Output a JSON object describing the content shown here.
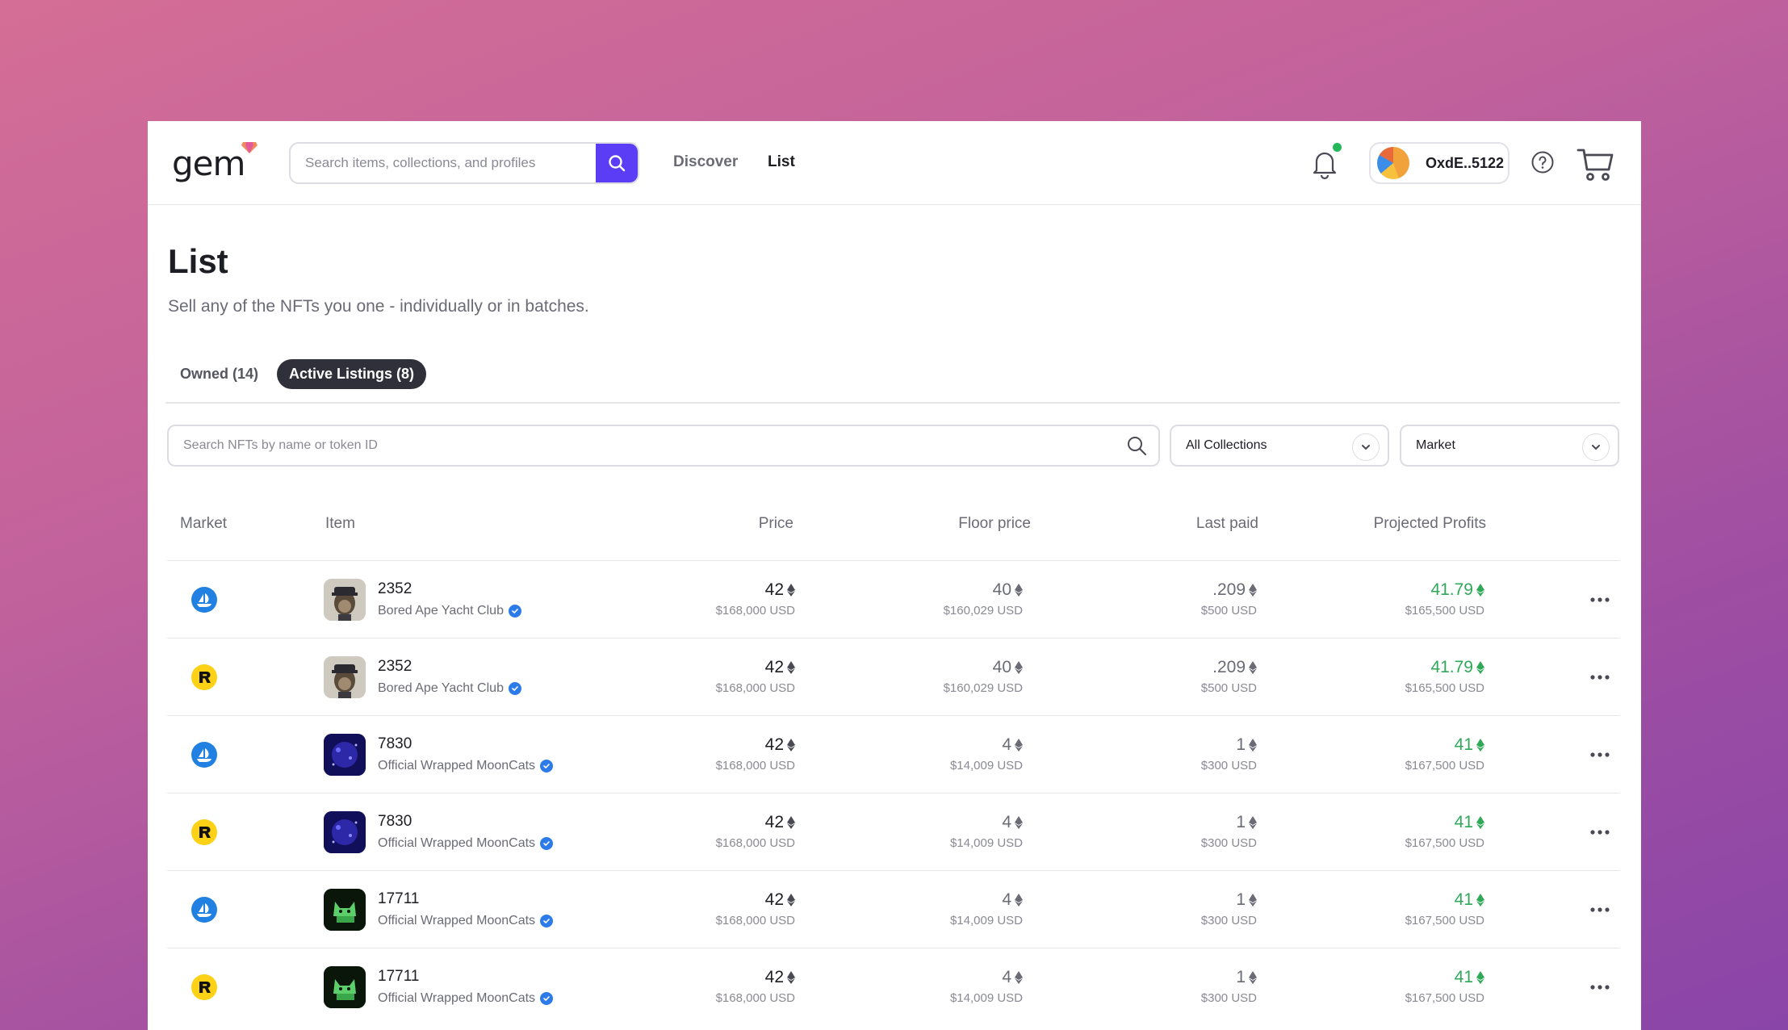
{
  "header": {
    "logo": "gem",
    "search_placeholder": "Search items, collections, and profiles",
    "nav": [
      {
        "label": "Discover"
      },
      {
        "label": "List"
      }
    ],
    "account": "OxdE..5122"
  },
  "page": {
    "title": "List",
    "subtitle": "Sell any of the NFTs you one - individually or in batches.",
    "tabs": [
      {
        "label": "Owned (14)"
      },
      {
        "label": "Active Listings (8)"
      }
    ],
    "filter_placeholder": "Search NFTs by name or token ID",
    "collection_select": "All Collections",
    "market_select": "Market"
  },
  "table": {
    "headers": {
      "market": "Market",
      "item": "Item",
      "price": "Price",
      "floor": "Floor price",
      "last": "Last paid",
      "profit": "Projected Profits"
    },
    "rows": [
      {
        "market_icon": "opensea-icon",
        "thumb": "ape",
        "name": "2352",
        "collection": "Bored Ape Yacht Club",
        "price": "42",
        "price_usd": "$168,000 USD",
        "floor": "40",
        "floor_usd": "$160,029 USD",
        "last": ".209",
        "last_usd": "$500 USD",
        "profit": "41.79",
        "profit_usd": "$165,500 USD"
      },
      {
        "market_icon": "rarible-icon",
        "thumb": "ape",
        "name": "2352",
        "collection": "Bored Ape Yacht Club",
        "price": "42",
        "price_usd": "$168,000 USD",
        "floor": "40",
        "floor_usd": "$160,029 USD",
        "last": ".209",
        "last_usd": "$500 USD",
        "profit": "41.79",
        "profit_usd": "$165,500 USD"
      },
      {
        "market_icon": "opensea-icon",
        "thumb": "moon",
        "name": "7830",
        "collection": "Official Wrapped MoonCats",
        "price": "42",
        "price_usd": "$168,000 USD",
        "floor": "4",
        "floor_usd": "$14,009 USD",
        "last": "1",
        "last_usd": "$300 USD",
        "profit": "41",
        "profit_usd": "$167,500 USD"
      },
      {
        "market_icon": "rarible-icon",
        "thumb": "moon",
        "name": "7830",
        "collection": "Official Wrapped MoonCats",
        "price": "42",
        "price_usd": "$168,000 USD",
        "floor": "4",
        "floor_usd": "$14,009 USD",
        "last": "1",
        "last_usd": "$300 USD",
        "profit": "41",
        "profit_usd": "$167,500 USD"
      },
      {
        "market_icon": "opensea-icon",
        "thumb": "green",
        "name": "17711",
        "collection": "Official Wrapped MoonCats",
        "price": "42",
        "price_usd": "$168,000 USD",
        "floor": "4",
        "floor_usd": "$14,009 USD",
        "last": "1",
        "last_usd": "$300 USD",
        "profit": "41",
        "profit_usd": "$167,500 USD"
      },
      {
        "market_icon": "rarible-icon",
        "thumb": "green",
        "name": "17711",
        "collection": "Official Wrapped MoonCats",
        "price": "42",
        "price_usd": "$168,000 USD",
        "floor": "4",
        "floor_usd": "$14,009 USD",
        "last": "1",
        "last_usd": "$300 USD",
        "profit": "41",
        "profit_usd": "$167,500 USD"
      }
    ]
  },
  "colors": {
    "accent": "#5b3df5",
    "profit": "#2fa85a",
    "notification_dot": "#22b85a",
    "opensea": "#2081e2",
    "rarible": "#fcd116"
  }
}
